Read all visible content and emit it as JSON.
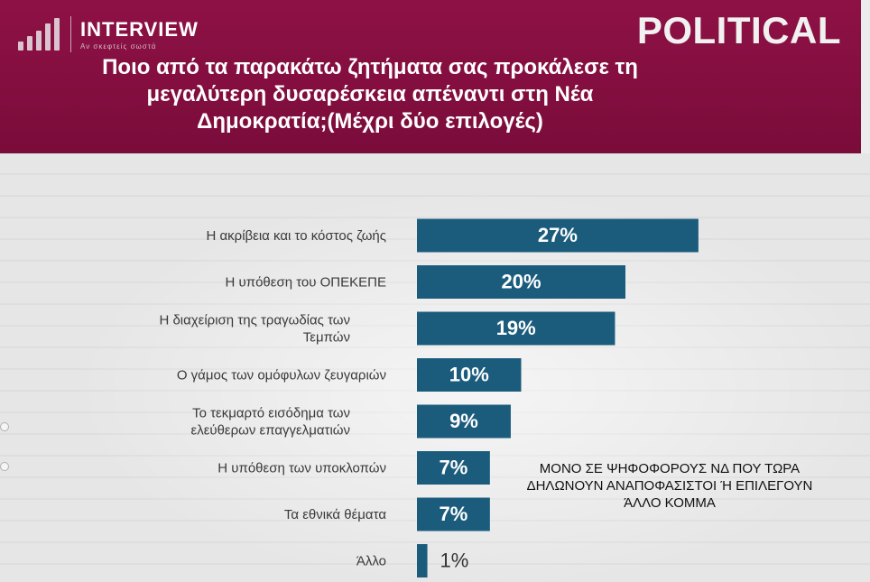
{
  "logo": {
    "name": "INTERVIEW",
    "tagline": "Αν σκεφτείς σωστά"
  },
  "brand": "POLITICAL",
  "question": "Ποιο από τα παρακάτω ζητήματα σας προκάλεσε τη μεγαλύτερη δυσαρέσκεια απέναντι στη Νέα Δημοκρατία;(Μέχρι δύο επιλογές)",
  "note": "ΜΟΝΟ ΣΕ ΨΗΦΟΦΟΡΟΥΣ ΝΔ ΠΟΥ ΤΩΡΑ ΔΗΛΩΝΟΥΝ ΑΝΑΠΟΦΑΣΙΣΤΟΙ Ή ΕΠΙΛΕΓΟΥΝ ΆΛΛΟ ΚΟΜΜΑ",
  "colors": {
    "header": "#8e1145",
    "bar": "#1b5c7d"
  },
  "chart_data": {
    "type": "bar",
    "orientation": "horizontal",
    "categories": [
      [
        "Η ακρίβεια και το κόστος ζωής"
      ],
      [
        "Η υπόθεση του ΟΠΕΚΕΠΕ"
      ],
      [
        "Η διαχείριση της τραγωδίας των",
        "Τεμπών"
      ],
      [
        "Ο γάμος των ομόφυλων ζευγαριών"
      ],
      [
        "Το τεκμαρτό εισόδημα των",
        "ελεύθερων επαγγελματιών"
      ],
      [
        "Η υπόθεση των υποκλοπών"
      ],
      [
        "Τα εθνικά θέματα"
      ],
      [
        "Άλλο"
      ]
    ],
    "values": [
      27,
      20,
      19,
      10,
      9,
      7,
      7,
      1
    ],
    "value_labels": [
      "27%",
      "20%",
      "19%",
      "10%",
      "9%",
      "7%",
      "7%",
      "1%"
    ],
    "xlim": [
      0,
      30
    ]
  }
}
